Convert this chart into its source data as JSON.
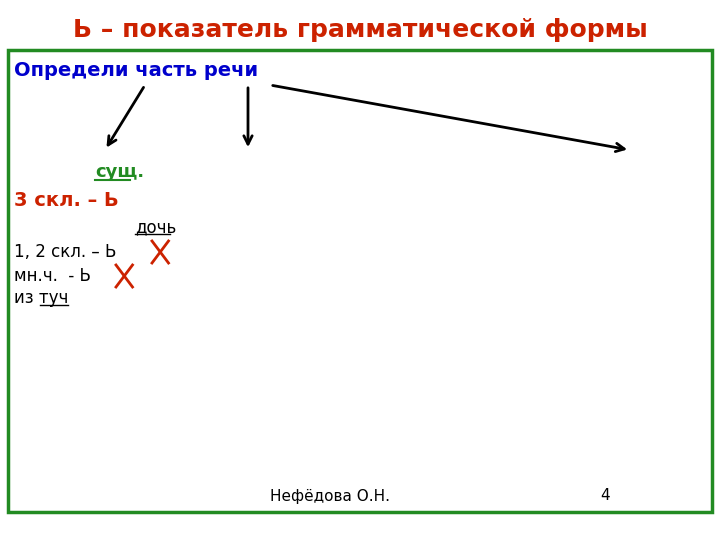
{
  "title": "Ь – показатель грамматической формы",
  "title_color": "#cc2200",
  "title_fontsize": 18,
  "bg_color": "#ffffff",
  "border_color": "#228B22",
  "footer_text": "Нефёдова О.Н.",
  "footer_number": "4",
  "line1_text": "Определи часть речи",
  "line1_color": "#0000cc",
  "line1_fontsize": 14,
  "sush_text": "сущ.",
  "sush_color": "#228B22",
  "sush_fontsize": 13,
  "skl3_text": "3 скл. – Ь",
  "skl3_color": "#cc2200",
  "skl3_fontsize": 14,
  "doch_text": "дочь",
  "doch_color": "#000000",
  "doch_fontsize": 12,
  "skl12_text": "1, 2 скл. – Ь",
  "skl12_color": "#000000",
  "skl12_fontsize": 12,
  "mnch_text": "мн.ч.  - Ь",
  "mnch_color": "#000000",
  "mnch_fontsize": 12,
  "tuch_text": "из туч",
  "tuch_color": "#000000",
  "tuch_fontsize": 12,
  "cross_color": "#cc2200",
  "footer_fontsize": 11
}
